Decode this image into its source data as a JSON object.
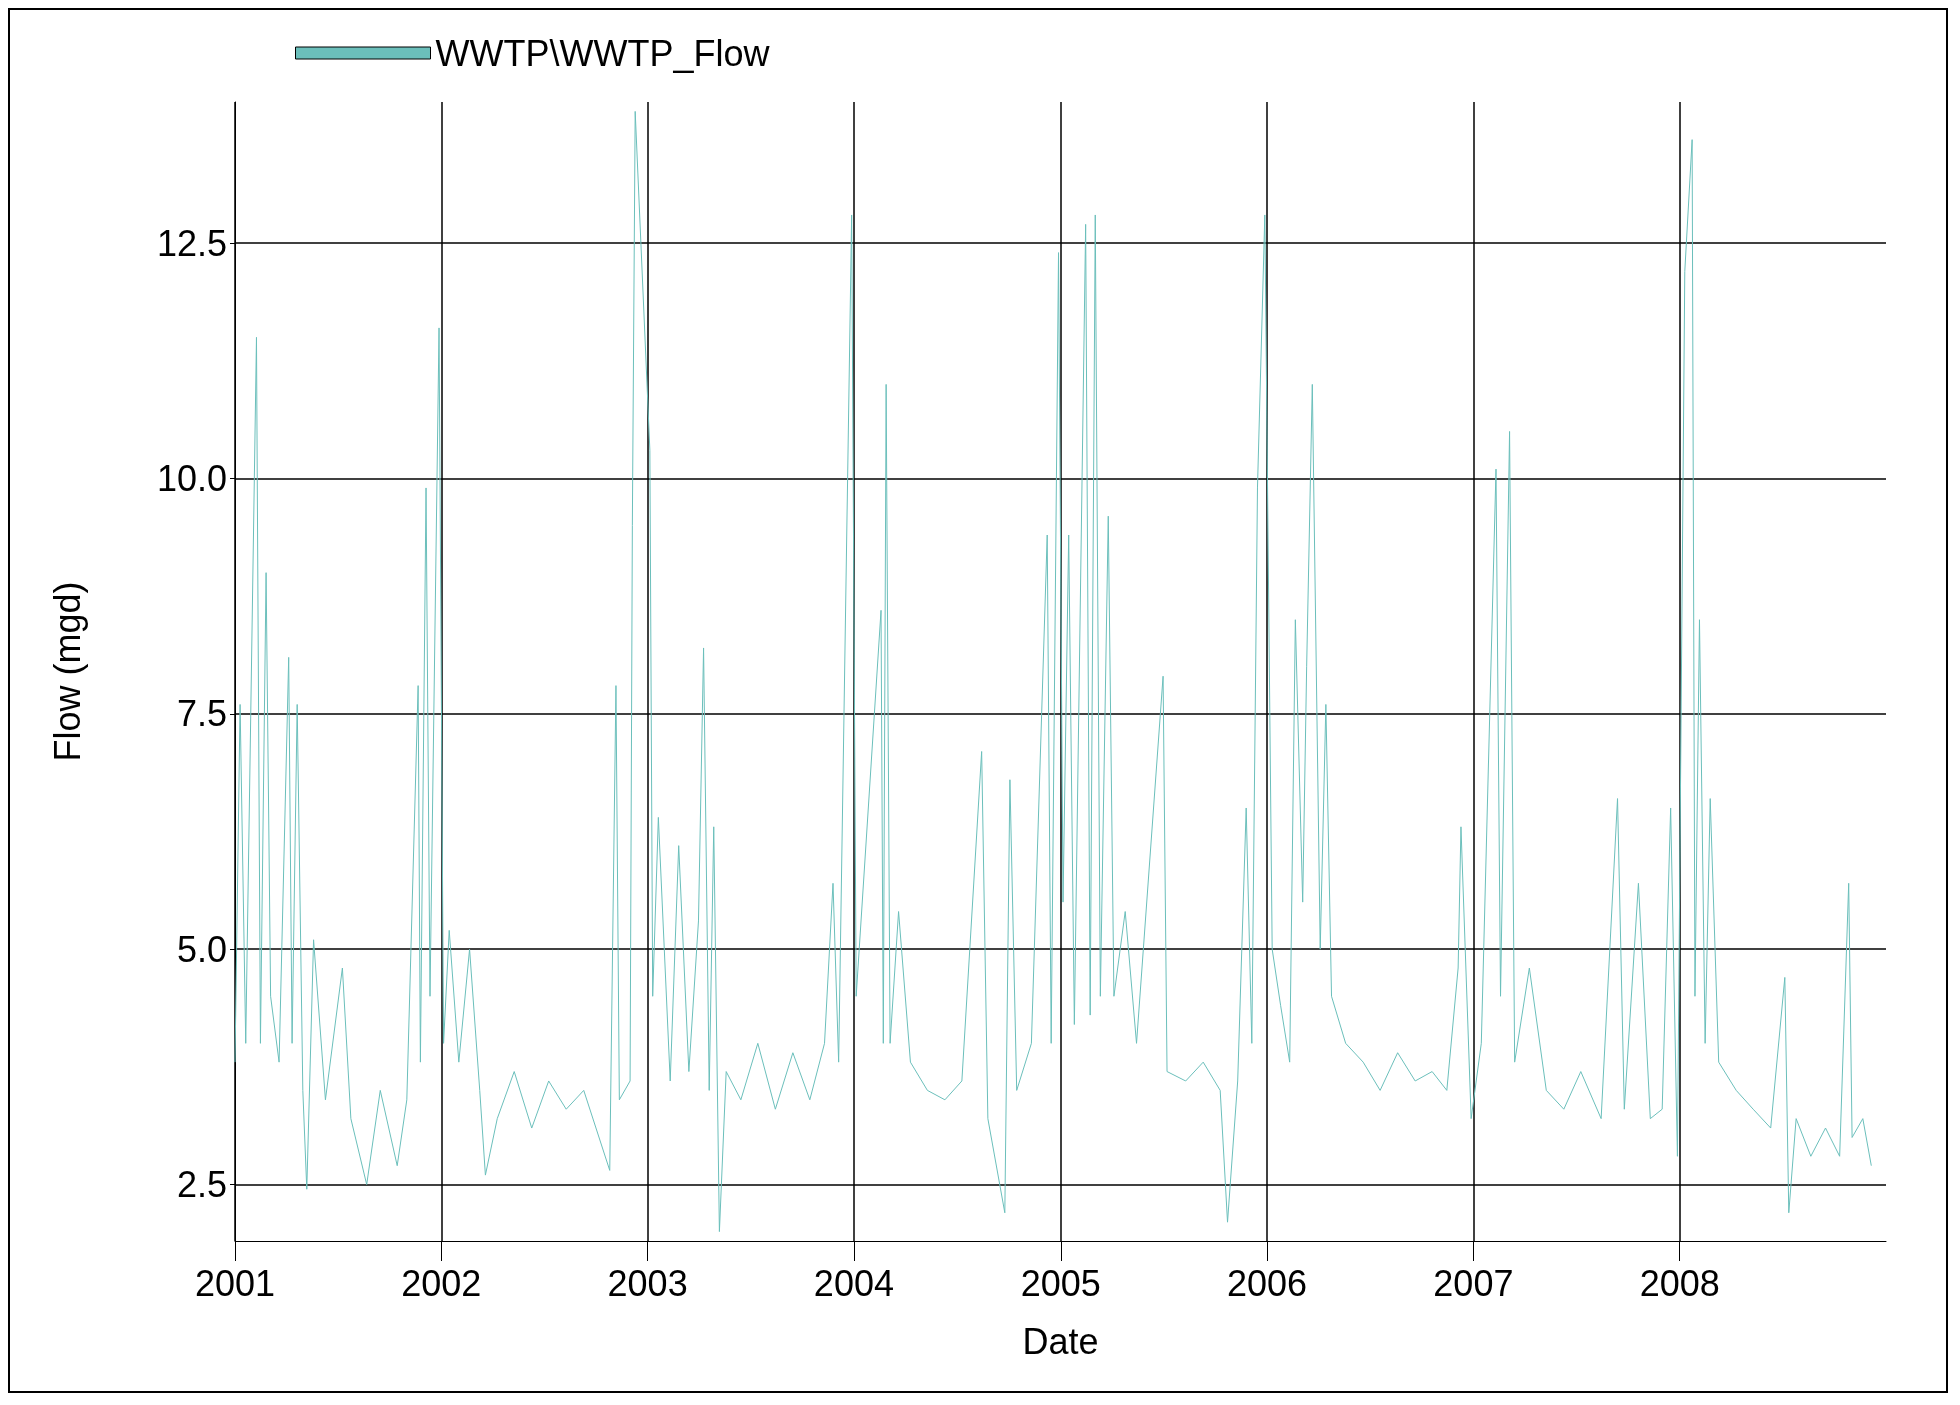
{
  "chart_data": {
    "type": "line",
    "xlabel": "Date",
    "ylabel": "Flow (mgd)",
    "legend": "top left",
    "grid": true,
    "marker": "none",
    "line_style": "solid",
    "xlim": [
      "2001-01-01",
      "2008-12-31"
    ],
    "xticks": [
      "2001",
      "2002",
      "2003",
      "2004",
      "2005",
      "2006",
      "2007",
      "2008"
    ],
    "ylim": [
      1.9,
      14.0
    ],
    "yticks": [
      {
        "value": 2.5,
        "label": "2.5"
      },
      {
        "value": 5,
        "label": "5.0"
      },
      {
        "value": 7.5,
        "label": "7.5"
      },
      {
        "value": 10,
        "label": "10.0"
      },
      {
        "value": 12.5,
        "label": "12.5"
      }
    ],
    "series": [
      {
        "name": "WWTP\\WWTP_Flow",
        "color": "#6bbfbb",
        "x": [
          "2001-01-01",
          "2001-01-10",
          "2001-01-20",
          "2001-02-08",
          "2001-02-15",
          "2001-02-25",
          "2001-03-05",
          "2001-03-20",
          "2001-04-06",
          "2001-04-12",
          "2001-04-21",
          "2001-05-01",
          "2001-05-08",
          "2001-05-20",
          "2001-06-10",
          "2001-07-10",
          "2001-07-25",
          "2001-08-22",
          "2001-09-15",
          "2001-10-15",
          "2001-11-01",
          "2001-11-21",
          "2001-11-25",
          "2001-12-05",
          "2001-12-12",
          "2001-12-28",
          "2002-01-05",
          "2002-01-15",
          "2002-02-01",
          "2002-02-20",
          "2002-03-10",
          "2002-03-20",
          "2002-04-10",
          "2002-05-10",
          "2002-06-10",
          "2002-07-10",
          "2002-08-10",
          "2002-09-10",
          "2002-10-26",
          "2002-11-06",
          "2002-11-12",
          "2002-12-01",
          "2002-12-05",
          "2002-12-10",
          "2003-01-05",
          "2003-01-10",
          "2003-01-20",
          "2003-02-10",
          "2003-02-25",
          "2003-03-15",
          "2003-04-01",
          "2003-04-10",
          "2003-04-20",
          "2003-04-28",
          "2003-05-08",
          "2003-05-20",
          "2003-06-15",
          "2003-07-15",
          "2003-08-15",
          "2003-09-15",
          "2003-10-15",
          "2003-11-10",
          "2003-11-25",
          "2003-12-05",
          "2003-12-28",
          "2004-01-05",
          "2004-02-18",
          "2004-02-22",
          "2004-02-27",
          "2004-03-05",
          "2004-03-20",
          "2004-04-10",
          "2004-05-10",
          "2004-06-10",
          "2004-07-10",
          "2004-08-14",
          "2004-08-25",
          "2004-09-24",
          "2004-10-03",
          "2004-10-15",
          "2004-11-10",
          "2004-12-08",
          "2004-12-15",
          "2004-12-28",
          "2005-01-05",
          "2005-01-15",
          "2005-01-25",
          "2005-02-14",
          "2005-02-22",
          "2005-03-03",
          "2005-03-12",
          "2005-03-26",
          "2005-04-05",
          "2005-04-25",
          "2005-05-15",
          "2005-07-01",
          "2005-07-08",
          "2005-08-10",
          "2005-09-10",
          "2005-10-10",
          "2005-10-23",
          "2005-11-10",
          "2005-11-25",
          "2005-12-05",
          "2005-12-15",
          "2005-12-28",
          "2006-01-10",
          "2006-01-25",
          "2006-02-10",
          "2006-02-20",
          "2006-03-05",
          "2006-03-12",
          "2006-03-22",
          "2006-04-05",
          "2006-04-15",
          "2006-04-25",
          "2006-05-20",
          "2006-06-20",
          "2006-07-20",
          "2006-08-20",
          "2006-09-20",
          "2006-10-20",
          "2006-11-15",
          "2006-12-05",
          "2006-12-10",
          "2006-12-28",
          "2007-01-15",
          "2007-02-10",
          "2007-02-18",
          "2007-03-06",
          "2007-03-15",
          "2007-04-10",
          "2007-05-10",
          "2007-06-10",
          "2007-07-10",
          "2007-08-15",
          "2007-09-13",
          "2007-09-25",
          "2007-10-20",
          "2007-11-10",
          "2007-12-01",
          "2007-12-16",
          "2007-12-28",
          "2008-01-10",
          "2008-01-23",
          "2008-01-28",
          "2008-02-05",
          "2008-02-15",
          "2008-02-24",
          "2008-03-10",
          "2008-04-10",
          "2008-05-10",
          "2008-06-10",
          "2008-07-05",
          "2008-07-12",
          "2008-07-25",
          "2008-08-20",
          "2008-09-15",
          "2008-10-10",
          "2008-10-26",
          "2008-11-01",
          "2008-11-20",
          "2008-12-05"
        ],
        "values": [
          3.8,
          7.6,
          4.0,
          11.5,
          4.0,
          9.0,
          4.5,
          3.8,
          8.1,
          4.0,
          7.6,
          3.5,
          2.45,
          5.1,
          3.4,
          4.8,
          3.2,
          2.5,
          3.5,
          2.7,
          3.4,
          7.8,
          3.8,
          9.9,
          4.5,
          11.6,
          4.0,
          5.2,
          3.8,
          5.0,
          3.5,
          2.6,
          3.2,
          3.7,
          3.1,
          3.6,
          3.3,
          3.5,
          2.65,
          7.8,
          3.4,
          3.6,
          9.5,
          13.9,
          10.3,
          4.5,
          6.4,
          3.6,
          6.1,
          3.7,
          5.3,
          8.2,
          3.5,
          6.3,
          2.0,
          3.7,
          3.4,
          4.0,
          3.3,
          3.9,
          3.4,
          4.0,
          5.7,
          3.8,
          12.8,
          4.5,
          8.6,
          4.0,
          11.0,
          4.0,
          5.4,
          3.8,
          3.5,
          3.4,
          3.6,
          7.1,
          3.2,
          2.2,
          6.8,
          3.5,
          4.0,
          9.4,
          4.0,
          12.4,
          5.5,
          9.4,
          4.2,
          12.7,
          4.3,
          12.8,
          4.5,
          9.6,
          4.5,
          5.4,
          4.0,
          7.9,
          3.7,
          3.6,
          3.8,
          3.5,
          2.1,
          3.6,
          6.5,
          4.0,
          9.9,
          12.8,
          5.0,
          4.4,
          3.8,
          8.5,
          5.5,
          8.0,
          11.0,
          5.0,
          7.6,
          4.5,
          4.0,
          3.8,
          3.5,
          3.9,
          3.6,
          3.7,
          3.5,
          4.8,
          6.3,
          3.2,
          4.0,
          10.1,
          4.5,
          10.5,
          3.8,
          4.8,
          3.5,
          3.3,
          3.7,
          3.2,
          6.6,
          3.3,
          5.7,
          3.2,
          3.3,
          6.5,
          2.8,
          12.2,
          13.6,
          4.5,
          8.5,
          4.0,
          6.6,
          3.8,
          3.5,
          3.3,
          3.1,
          4.7,
          2.2,
          3.2,
          2.8,
          3.1,
          2.8,
          5.7,
          3.0,
          3.2,
          2.7
        ]
      }
    ]
  }
}
